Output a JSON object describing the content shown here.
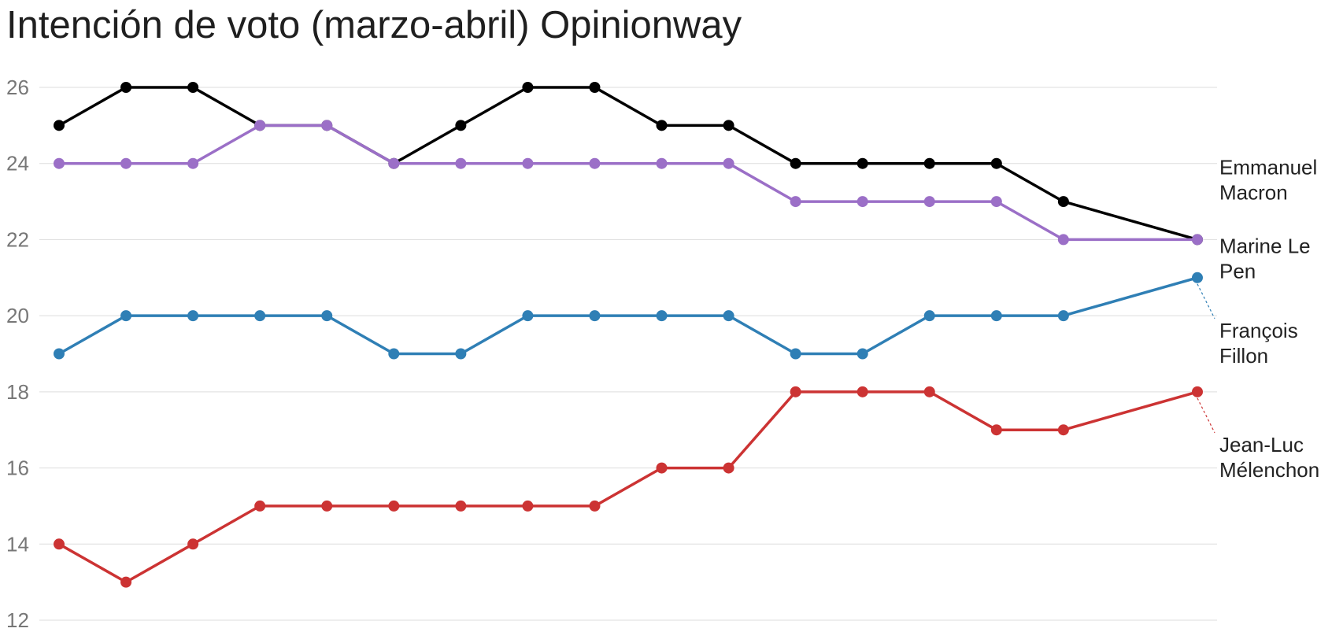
{
  "chart_data": {
    "type": "line",
    "title": "Intención de voto (marzo-abril) Opinionway",
    "xlabel": "",
    "ylabel": "",
    "ylim": [
      12,
      26
    ],
    "yticks": [
      12,
      14,
      16,
      18,
      20,
      22,
      24,
      26
    ],
    "grid": true,
    "legend": "direct labels at right end of lines",
    "x": [
      1,
      2,
      3,
      4,
      5,
      6,
      7,
      8,
      9,
      10,
      11,
      12,
      13,
      14,
      15,
      16,
      17,
      18
    ],
    "series": [
      {
        "name": "Emmanuel Macron",
        "label_lines": [
          "Emmanuel",
          "Macron"
        ],
        "color": "#000000",
        "values": [
          25,
          26,
          26,
          25,
          25,
          24,
          25,
          26,
          26,
          25,
          25,
          24,
          24,
          24,
          24,
          23,
          null,
          22
        ]
      },
      {
        "name": "Marine Le Pen",
        "label_lines": [
          "Marine Le",
          "Pen"
        ],
        "color": "#9b6fc7",
        "values": [
          24,
          24,
          24,
          25,
          25,
          24,
          24,
          24,
          24,
          24,
          24,
          23,
          23,
          23,
          23,
          22,
          null,
          22
        ]
      },
      {
        "name": "François Fillon",
        "label_lines": [
          "François",
          "Fillon"
        ],
        "color": "#2f7fb5",
        "values": [
          19,
          20,
          20,
          20,
          20,
          19,
          19,
          20,
          20,
          20,
          20,
          19,
          19,
          20,
          20,
          20,
          null,
          21
        ]
      },
      {
        "name": "Jean-Luc Mélenchon",
        "label_lines": [
          "Jean-Luc",
          "Mélenchon"
        ],
        "color": "#cc3333",
        "values": [
          14,
          13,
          14,
          15,
          15,
          15,
          15,
          15,
          15,
          16,
          16,
          18,
          18,
          18,
          17,
          17,
          null,
          18
        ]
      }
    ]
  }
}
